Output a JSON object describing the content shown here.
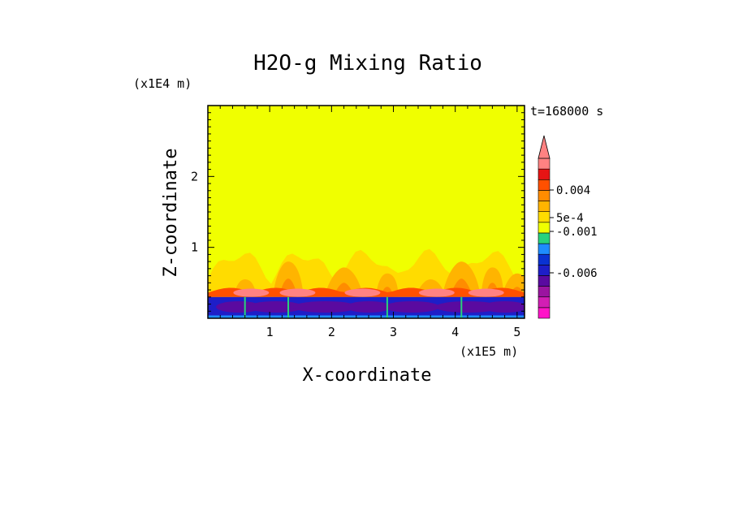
{
  "chart_data": {
    "type": "heatmap",
    "title": "H2O-g Mixing Ratio",
    "xlabel": "X-coordinate",
    "ylabel": "Z-coordinate",
    "x_unit": "(x1E5 m)",
    "y_unit": "(x1E4 m)",
    "time_label": "t=168000 s",
    "xlim": [
      0,
      5.12
    ],
    "ylim": [
      0,
      3.0
    ],
    "x_ticks": [
      1,
      2,
      3,
      4,
      5
    ],
    "y_ticks": [
      1,
      2
    ],
    "background_value": 0.0,
    "colorbar": {
      "colors": [
        "#ff14c8",
        "#d21eb4",
        "#9b14a0",
        "#5a0aa0",
        "#1e1ec8",
        "#0a32d2",
        "#1e8cff",
        "#28d27d",
        "#f0ff00",
        "#ffdc00",
        "#ffb400",
        "#ff8c00",
        "#ff5000",
        "#e61414",
        "#ff8282"
      ],
      "labels": [
        {
          "text": "0.004",
          "value": 0.004
        },
        {
          "text": "5e-4",
          "value": 0.0005
        },
        {
          "text": "-0.001",
          "value": -0.001
        },
        {
          "text": "-0.006",
          "value": -0.006
        }
      ]
    },
    "features": {
      "dry_layer_top": 0.3,
      "moist_band_top": 1.0,
      "plume_x": [
        0.6,
        1.3,
        2.2,
        2.9,
        3.6,
        4.1,
        4.6,
        5.0
      ]
    }
  }
}
